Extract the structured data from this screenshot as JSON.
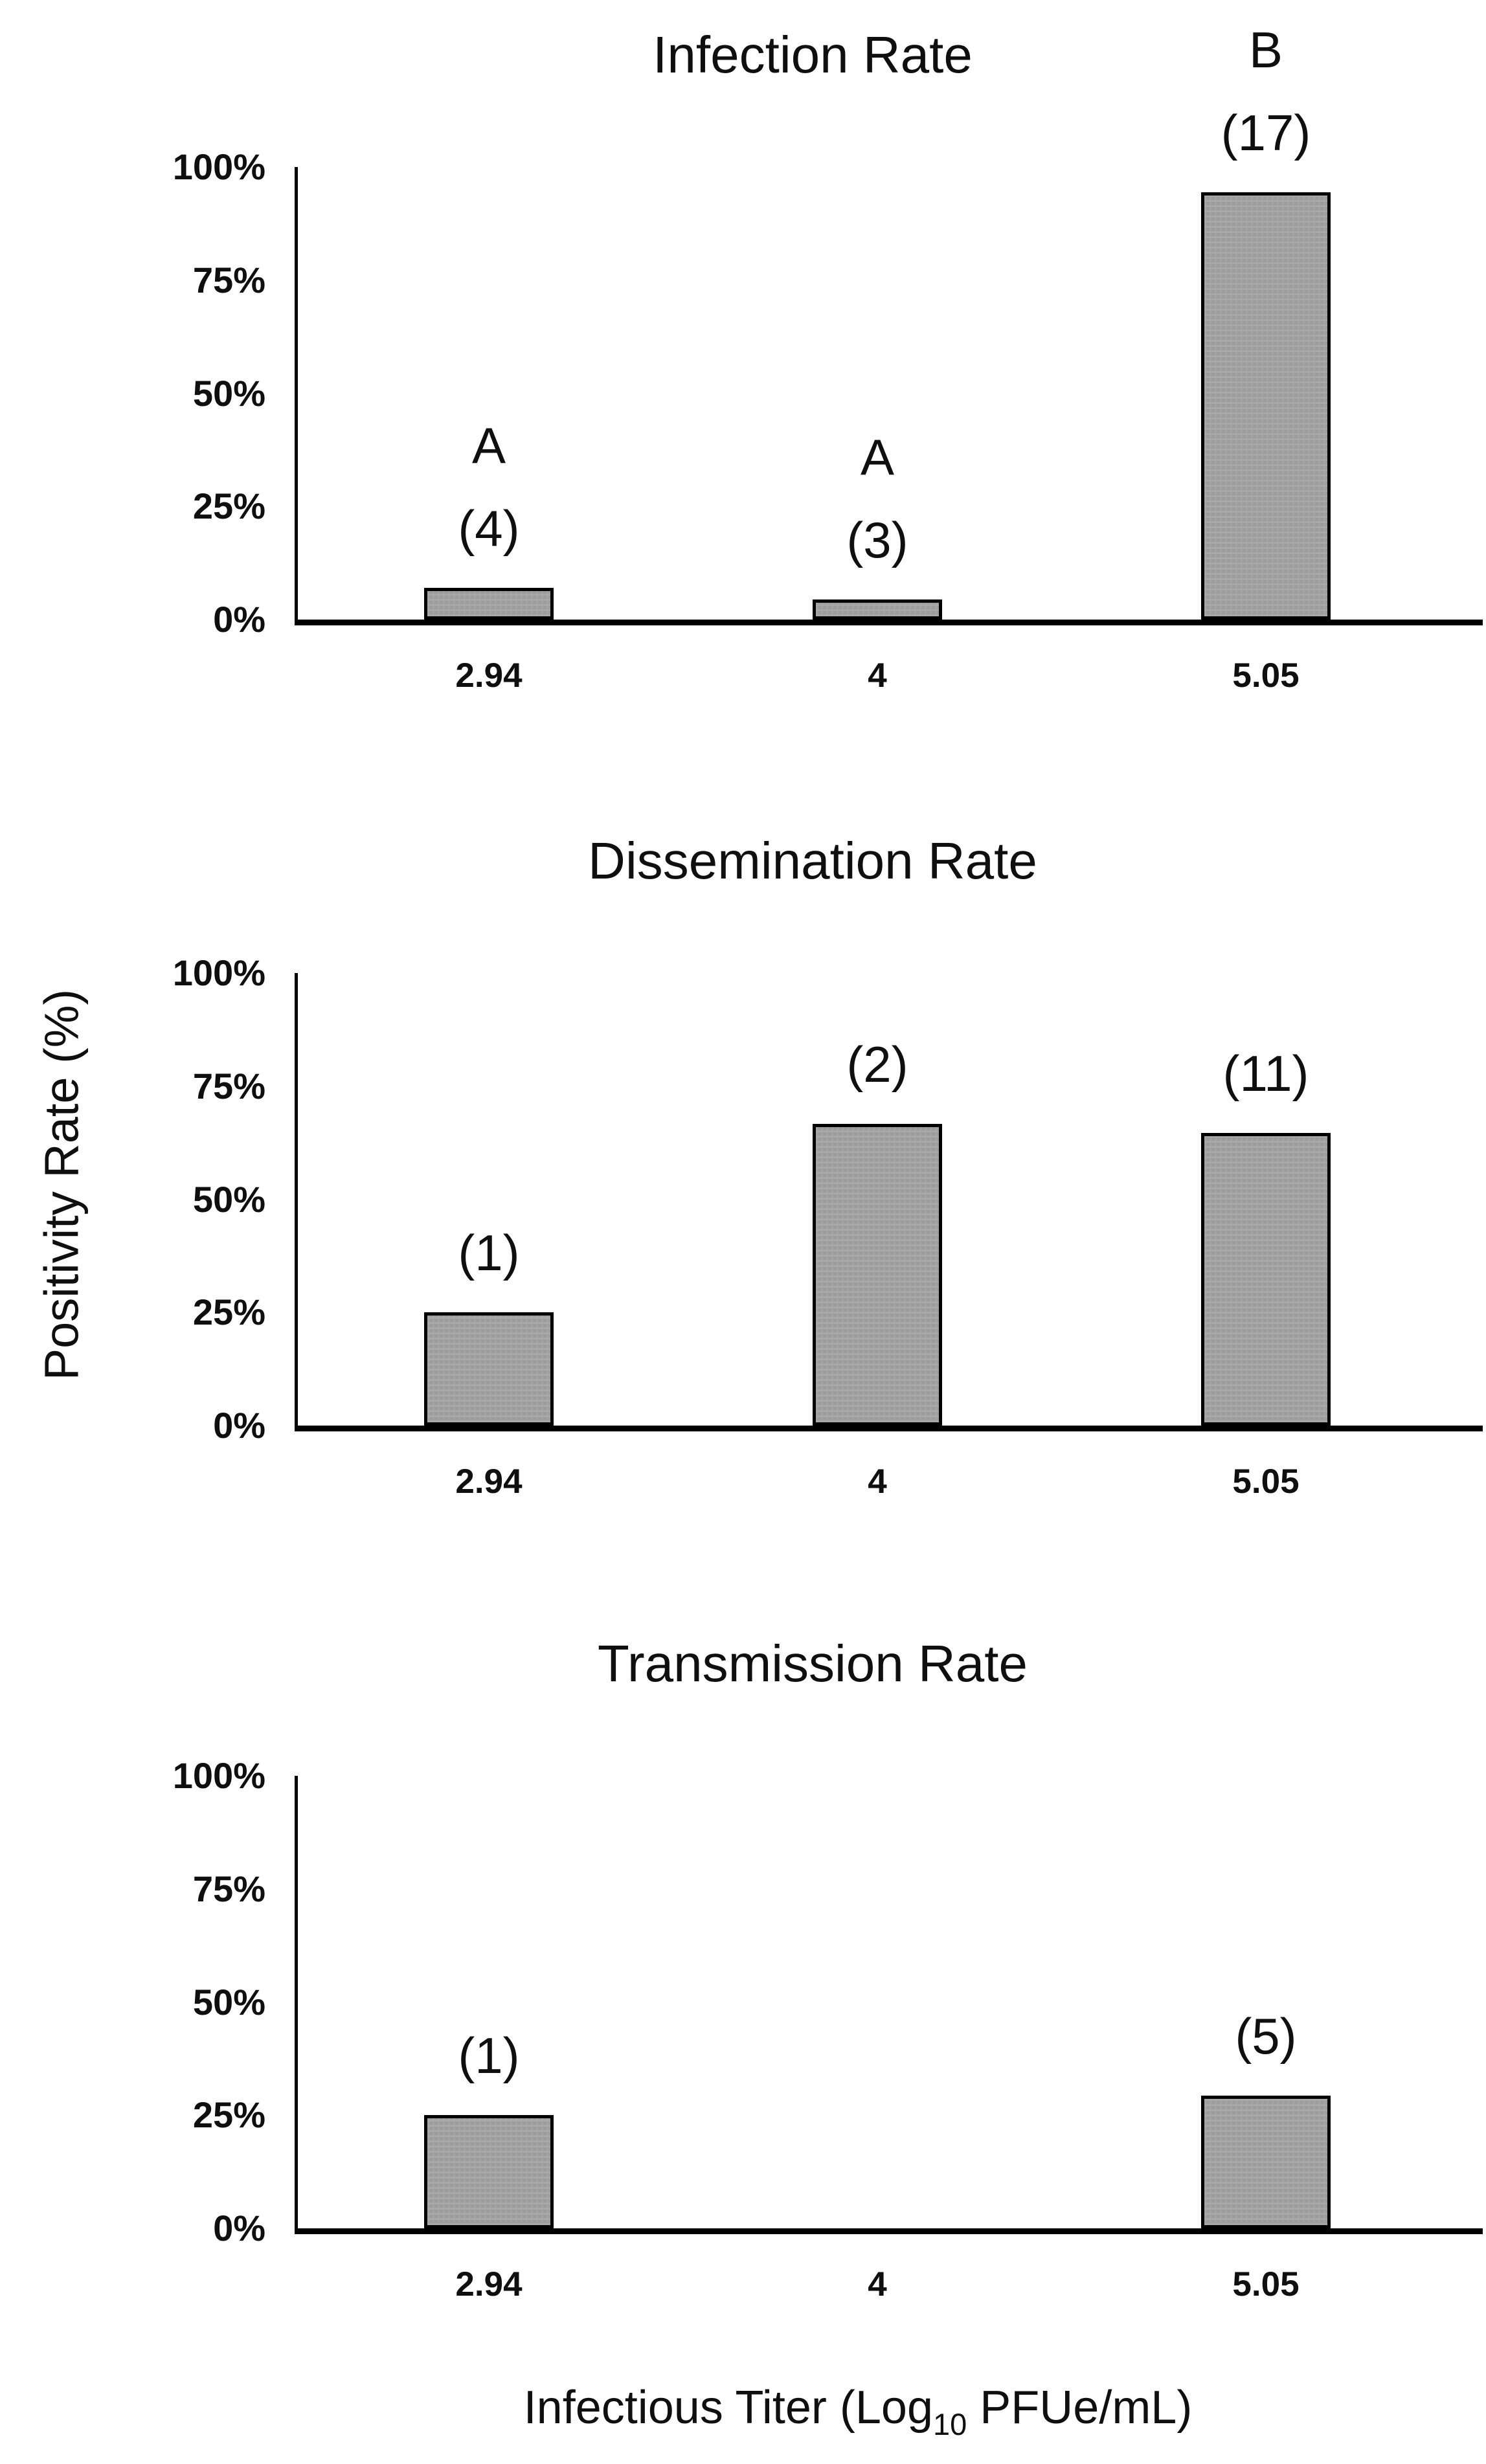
{
  "figure": {
    "y_axis_title": "Positivity Rate (%)",
    "x_axis_title": {
      "prefix": "Infectious Titer (Log",
      "sub": "10",
      "suffix": " PFUe/mL)"
    }
  },
  "colors": {
    "background": "#ffffff",
    "bar_fill": "#9b9b9b",
    "bar_fill_speckle": "#a9a9a9",
    "bar_border": "#000000",
    "axis": "#000000",
    "text": "#0f0f0f"
  },
  "chart_data": [
    {
      "type": "bar",
      "title": "Infection Rate",
      "xlabel": "",
      "ylabel": "Positivity Rate (%)",
      "ylim": [
        0,
        100
      ],
      "grid": false,
      "legend": "none",
      "yticks": [
        "100%",
        "75%",
        "50%",
        "25%",
        "0%"
      ],
      "categories": [
        "2.94",
        "4",
        "5.05"
      ],
      "values": [
        7,
        4.4,
        94.4
      ],
      "bar_annotations": [
        [
          "A",
          "(4)"
        ],
        [
          "A",
          "(3)"
        ],
        [
          "B",
          "(17)"
        ]
      ]
    },
    {
      "type": "bar",
      "title": "Dissemination Rate",
      "xlabel": "",
      "ylabel": "Positivity Rate (%)",
      "ylim": [
        0,
        100
      ],
      "grid": false,
      "legend": "none",
      "yticks": [
        "100%",
        "75%",
        "50%",
        "25%",
        "0%"
      ],
      "categories": [
        "2.94",
        "4",
        "5.05"
      ],
      "values": [
        25,
        66.7,
        64.7
      ],
      "bar_annotations": [
        [
          "(1)"
        ],
        [
          "(2)"
        ],
        [
          "(11)"
        ]
      ]
    },
    {
      "type": "bar",
      "title": "Transmission Rate",
      "xlabel": "Infectious Titer (Log10 PFUe/mL)",
      "ylabel": "Positivity Rate (%)",
      "ylim": [
        0,
        100
      ],
      "grid": false,
      "legend": "none",
      "yticks": [
        "100%",
        "75%",
        "50%",
        "25%",
        "0%"
      ],
      "categories": [
        "2.94",
        "4",
        "5.05"
      ],
      "values": [
        25,
        0,
        29.4
      ],
      "bar_annotations": [
        [
          "(1)"
        ],
        [],
        [
          "(5)"
        ]
      ]
    }
  ]
}
